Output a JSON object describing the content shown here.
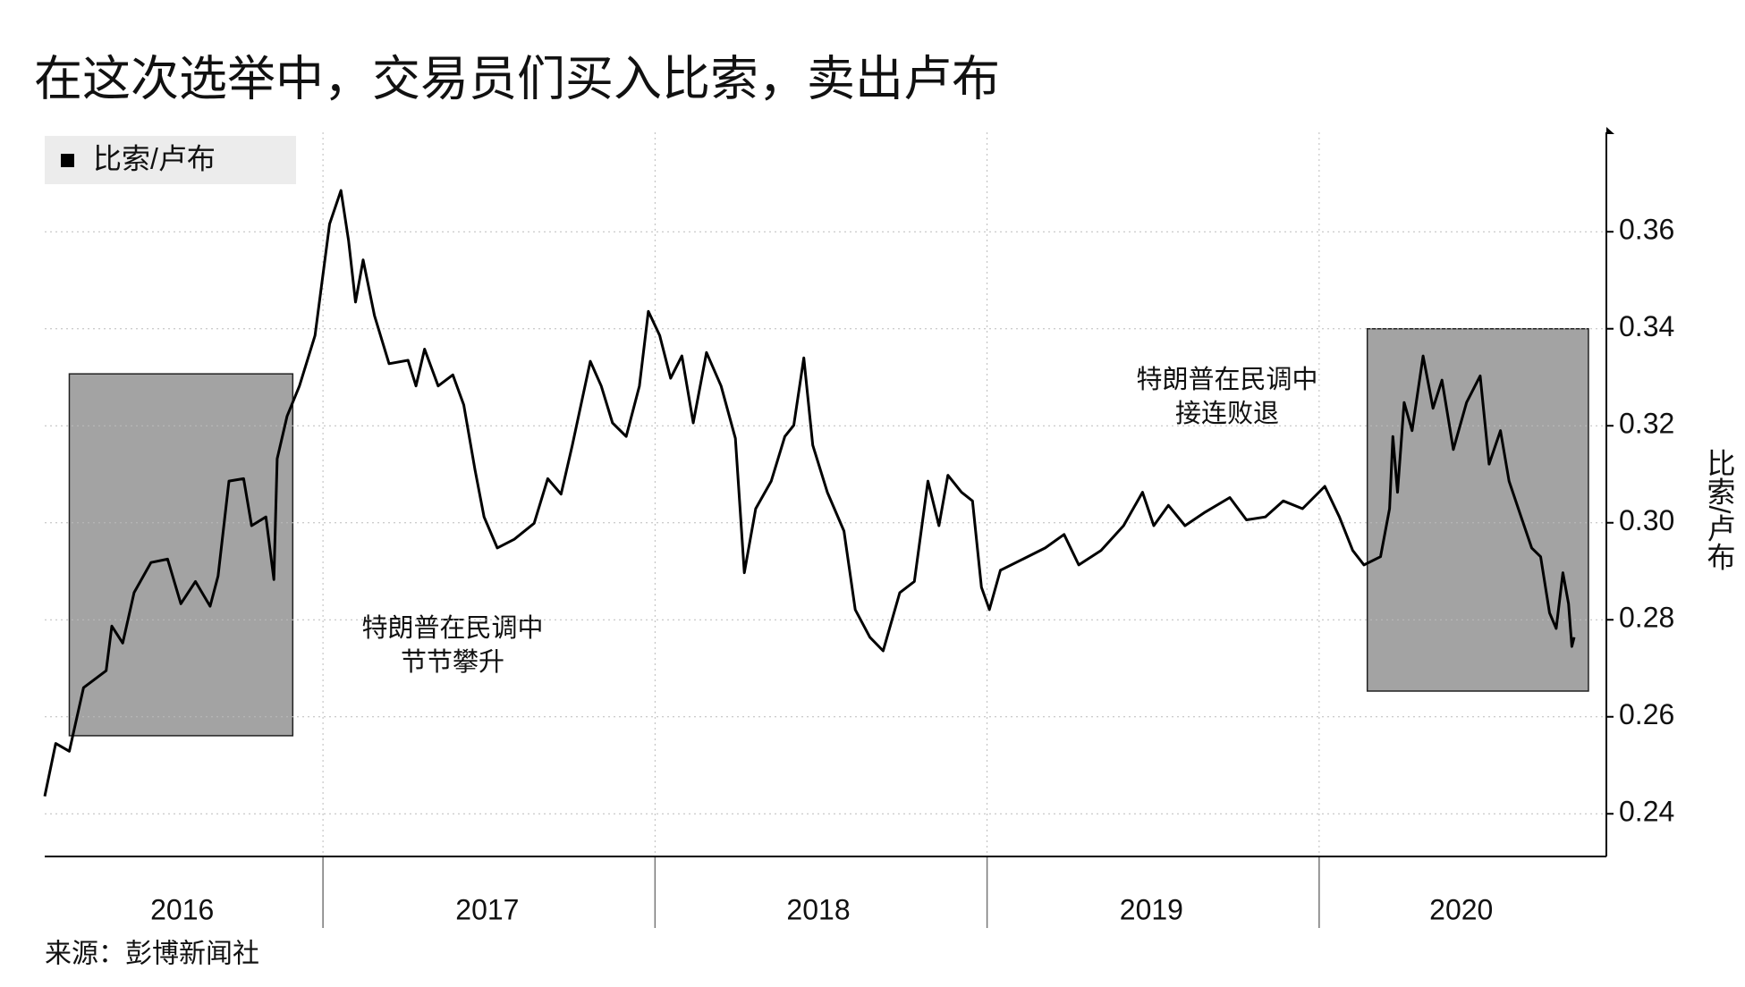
{
  "chart_data": {
    "type": "line",
    "title": "在这次选举中，交易员们买入比索，卖出卢布",
    "y_label": "比索/卢布",
    "source": "来源：彭博新闻社",
    "x": [
      2016.162,
      2016.195,
      2016.236,
      2016.279,
      2016.347,
      2016.364,
      2016.397,
      2016.431,
      2016.482,
      2016.532,
      2016.572,
      2016.616,
      2016.66,
      2016.684,
      2016.717,
      2016.761,
      2016.785,
      2016.828,
      2016.852,
      2016.862,
      2016.892,
      2016.929,
      2016.976,
      2017.02,
      2017.054,
      2017.077,
      2017.098,
      2017.121,
      2017.155,
      2017.199,
      2017.256,
      2017.28,
      2017.306,
      2017.347,
      2017.391,
      2017.424,
      2017.458,
      2017.485,
      2017.525,
      2017.576,
      2017.636,
      2017.677,
      2017.717,
      2017.751,
      2017.805,
      2017.838,
      2017.872,
      2017.913,
      2017.953,
      2017.98,
      2018.014,
      2018.047,
      2018.081,
      2018.115,
      2018.155,
      2018.199,
      2018.242,
      2018.269,
      2018.303,
      2018.35,
      2018.391,
      2018.418,
      2018.448,
      2018.475,
      2018.519,
      2018.569,
      2018.603,
      2018.647,
      2018.687,
      2018.737,
      2018.781,
      2018.822,
      2018.855,
      2018.882,
      2018.923,
      2018.956,
      2018.983,
      2019.007,
      2019.04,
      2019.108,
      2019.175,
      2019.232,
      2019.276,
      2019.343,
      2019.411,
      2019.468,
      2019.502,
      2019.546,
      2019.596,
      2019.657,
      2019.731,
      2019.781,
      2019.838,
      2019.892,
      2019.95,
      2020.017,
      2020.061,
      2020.101,
      2020.135,
      2020.185,
      2020.212,
      2020.222,
      2020.236,
      2020.256,
      2020.28,
      2020.313,
      2020.343,
      2020.37,
      2020.404,
      2020.444,
      2020.485,
      2020.512,
      2020.546,
      2020.572,
      2020.606,
      2020.64,
      2020.667,
      2020.694,
      2020.714,
      2020.734,
      2020.751,
      2020.761,
      2020.768
    ],
    "series": [
      {
        "name": "比索/卢布",
        "color": "#000000",
        "values": [
          0.2436,
          0.2545,
          0.2529,
          0.266,
          0.2695,
          0.2787,
          0.2752,
          0.2856,
          0.2918,
          0.2925,
          0.2833,
          0.2879,
          0.2828,
          0.289,
          0.3086,
          0.3091,
          0.2994,
          0.3012,
          0.2883,
          0.3132,
          0.322,
          0.3282,
          0.3386,
          0.3616,
          0.3685,
          0.3582,
          0.3455,
          0.3542,
          0.3427,
          0.3328,
          0.3335,
          0.3282,
          0.3358,
          0.3282,
          0.3305,
          0.3243,
          0.3109,
          0.3012,
          0.2948,
          0.2966,
          0.2999,
          0.3091,
          0.3059,
          0.316,
          0.3333,
          0.3282,
          0.3206,
          0.3178,
          0.3282,
          0.3436,
          0.3386,
          0.3298,
          0.3344,
          0.3206,
          0.3351,
          0.3282,
          0.3174,
          0.2897,
          0.3029,
          0.3086,
          0.3178,
          0.3201,
          0.334,
          0.316,
          0.3063,
          0.2983,
          0.2821,
          0.2764,
          0.2736,
          0.2856,
          0.2879,
          0.3086,
          0.2994,
          0.3098,
          0.3063,
          0.3045,
          0.2867,
          0.2821,
          0.2902,
          0.2925,
          0.2948,
          0.2976,
          0.2913,
          0.2943,
          0.2994,
          0.3063,
          0.2994,
          0.3036,
          0.2994,
          0.3022,
          0.3052,
          0.3006,
          0.3012,
          0.3045,
          0.3029,
          0.3075,
          0.3012,
          0.2943,
          0.2913,
          0.293,
          0.3029,
          0.3178,
          0.3063,
          0.3248,
          0.319,
          0.3344,
          0.3236,
          0.3294,
          0.3151,
          0.3248,
          0.3303,
          0.3121,
          0.319,
          0.3086,
          0.3017,
          0.2948,
          0.293,
          0.2814,
          0.2782,
          0.2897,
          0.2833,
          0.2745,
          0.2764
        ]
      }
    ],
    "xlim": [
      2016.162,
      2020.865
    ],
    "xticks": [
      {
        "value": 2016.576,
        "label": "2016"
      },
      {
        "value": 2017.495,
        "label": "2017"
      },
      {
        "value": 2018.492,
        "label": "2018"
      },
      {
        "value": 2019.495,
        "label": "2019"
      },
      {
        "value": 2020.428,
        "label": "2020"
      }
    ],
    "xgrid": [
      2017,
      2018,
      2019,
      2020
    ],
    "ylim": [
      0.2312,
      0.3805
    ],
    "yticks": [
      0.24,
      0.26,
      0.28,
      {
        "value": 0.3,
        "label": "0.30"
      },
      0.32,
      0.34,
      0.36
    ],
    "grid": true,
    "legend": "upper-left",
    "regions": [
      {
        "x": [
          2016.236,
          2016.909
        ],
        "y": [
          0.2561,
          0.3307
        ],
        "color": "#a3a3a3",
        "text": [
          "特朗普在民调中",
          "节节攀升"
        ]
      },
      {
        "x": [
          2020.145,
          2020.811
        ],
        "y": [
          0.2653,
          0.34
        ],
        "color": "#a3a3a3",
        "text": [
          "特朗普在民调中",
          "接连败退"
        ]
      }
    ]
  }
}
